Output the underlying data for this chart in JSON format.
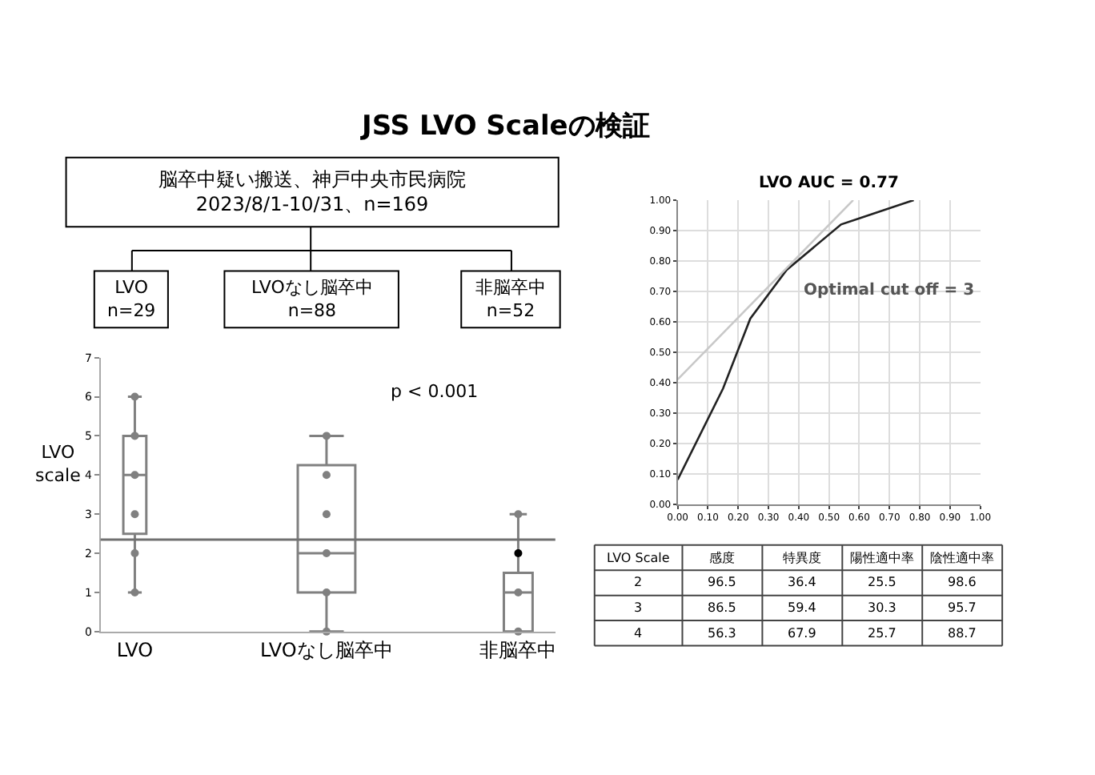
{
  "chart_data": [
    {
      "type": "other",
      "title": "JSS LVO Scaleの検証",
      "annotations": [
        "脳卒中疑い搬送、神戸中央市民病院\n2023/8/1-10/31、n=169",
        "LVO\nn=29",
        "LVOなし脳卒中\nn=88",
        "非脳卒中\nn=52"
      ]
    },
    {
      "type": "box",
      "ylabel": "LVO\nscale",
      "categories": [
        "LVO",
        "LVOなし脳卒中",
        "非脳卒中"
      ],
      "boxes": [
        {
          "low": 1,
          "q1": 2.5,
          "median": 4,
          "q3": 5,
          "high": 6
        },
        {
          "low": 0,
          "q1": 1,
          "median": 2,
          "q3": 4.25,
          "high": 5
        },
        {
          "low": 0,
          "q1": 0,
          "median": 1,
          "q3": 1.5,
          "high": 3
        }
      ],
      "series": [
        {
          "type": "scatter",
          "x": [
            "LVO",
            "LVO",
            "LVO",
            "LVO",
            "LVO",
            "LVO",
            "LVOなし脳卒中",
            "LVOなし脳卒中",
            "LVOなし脳卒中",
            "LVOなし脳卒中",
            "LVOなし脳卒中",
            "LVOなし脳卒中",
            "非脳卒中",
            "非脳卒中",
            "非脳卒中"
          ],
          "values": [
            1,
            2,
            3,
            4,
            5,
            6,
            0,
            1,
            2,
            3,
            4,
            5,
            0,
            1,
            3
          ],
          "color": "#808080"
        },
        {
          "type": "scatter",
          "x": [
            "非脳卒中"
          ],
          "values": [
            2
          ],
          "color": "#000000"
        }
      ],
      "ylim": [
        0,
        7
      ],
      "yticks": [
        0,
        1,
        2,
        3,
        4,
        5,
        6,
        7
      ],
      "ref_lines": [
        {
          "axis": "y",
          "value": 2.35,
          "color": "#707070"
        }
      ],
      "annotations": [
        "p < 0.001"
      ],
      "marker": "circle"
    },
    {
      "type": "line",
      "title": "LVO AUC = 0.77",
      "annotations": [
        "Optimal cut off = 3"
      ],
      "series": [
        {
          "x": [
            0,
            0.15,
            0.24,
            0.36,
            0.54,
            0.6,
            0.78
          ],
          "values": [
            0.08,
            0.38,
            0.61,
            0.77,
            0.92,
            0.94,
            1.0
          ],
          "color": "#222222"
        },
        {
          "x": [
            0,
            0.58
          ],
          "values": [
            0.41,
            1.0
          ],
          "color": "#c8c8c8"
        }
      ],
      "xlim": [
        0,
        1
      ],
      "ylim": [
        0,
        1
      ],
      "xticks": [
        {
          "value": 0,
          "label": "0.00"
        },
        {
          "value": 0.1,
          "label": "0.10"
        },
        {
          "value": 0.2,
          "label": "0.20"
        },
        {
          "value": 0.3,
          "label": "0.30"
        },
        {
          "value": 0.4,
          "label": "0.40"
        },
        {
          "value": 0.5,
          "label": "0.50"
        },
        {
          "value": 0.6,
          "label": "0.60"
        },
        {
          "value": 0.7,
          "label": "0.70"
        },
        {
          "value": 0.8,
          "label": "0.80"
        },
        {
          "value": 0.9,
          "label": "0.90"
        },
        {
          "value": 1,
          "label": "1.00"
        }
      ],
      "yticks": [
        {
          "value": 0,
          "label": "0.00"
        },
        {
          "value": 0.1,
          "label": "0.10"
        },
        {
          "value": 0.2,
          "label": "0.20"
        },
        {
          "value": 0.3,
          "label": "0.30"
        },
        {
          "value": 0.4,
          "label": "0.40"
        },
        {
          "value": 0.5,
          "label": "0.50"
        },
        {
          "value": 0.6,
          "label": "0.60"
        },
        {
          "value": 0.7,
          "label": "0.70"
        },
        {
          "value": 0.8,
          "label": "0.80"
        },
        {
          "value": 0.9,
          "label": "0.90"
        },
        {
          "value": 1,
          "label": "1.00"
        }
      ],
      "grid": true,
      "marker": "none",
      "line_style": "solid"
    },
    {
      "type": "heatmap",
      "ylabel": "LVO Scale",
      "categories": [
        "感度",
        "特異度",
        "陽性適中率",
        "陰性適中率"
      ],
      "y_categories": [
        "2",
        "3",
        "4"
      ],
      "cells": [
        [
          96.5,
          36.4,
          25.5,
          98.6
        ],
        [
          86.5,
          59.4,
          30.3,
          95.7
        ],
        [
          56.3,
          67.9,
          25.7,
          88.7
        ]
      ],
      "data_labels": true
    }
  ]
}
